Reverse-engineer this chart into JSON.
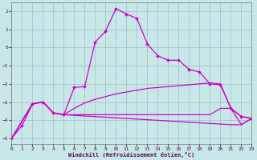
{
  "xlabel": "Windchill (Refroidissement éolien,°C)",
  "xlim": [
    0,
    23
  ],
  "ylim": [
    -5.3,
    2.5
  ],
  "xtick_labels": [
    "0",
    "1",
    "2",
    "3",
    "4",
    "5",
    "6",
    "7",
    "8",
    "9",
    "10",
    "11",
    "12",
    "13",
    "14",
    "15",
    "16",
    "17",
    "18",
    "19",
    "20",
    "21",
    "22",
    "23"
  ],
  "xticks": [
    0,
    1,
    2,
    3,
    4,
    5,
    6,
    7,
    8,
    9,
    10,
    11,
    12,
    13,
    14,
    15,
    16,
    17,
    18,
    19,
    20,
    21,
    22,
    23
  ],
  "yticks": [
    -5,
    -4,
    -3,
    -2,
    -1,
    0,
    1,
    2
  ],
  "bg_color": "#c8e8e8",
  "grid_color": "#9ab0c0",
  "line_color": "#cc00cc",
  "curve1_x": [
    0,
    1,
    2,
    3,
    4,
    5,
    6,
    7,
    8,
    9,
    10,
    11,
    12,
    13,
    14,
    15,
    16,
    17,
    18,
    19,
    20,
    21,
    22,
    23
  ],
  "curve1_y": [
    -5.0,
    -4.3,
    -3.1,
    -3.0,
    -3.6,
    -3.7,
    -2.2,
    -2.15,
    0.3,
    0.9,
    2.15,
    1.85,
    1.6,
    0.2,
    -0.45,
    -0.7,
    -0.7,
    -1.2,
    -1.35,
    -2.0,
    -2.05,
    -3.35,
    -3.8,
    -3.9
  ],
  "curve2_x": [
    0,
    2,
    3,
    4,
    5,
    6,
    7,
    8,
    9,
    10,
    11,
    12,
    13,
    14,
    15,
    16,
    17,
    18,
    19,
    20,
    21,
    22,
    23
  ],
  "curve2_y": [
    -5.0,
    -3.1,
    -3.0,
    -3.6,
    -3.7,
    -3.35,
    -3.05,
    -2.85,
    -2.7,
    -2.55,
    -2.45,
    -2.35,
    -2.25,
    -2.2,
    -2.15,
    -2.1,
    -2.05,
    -2.0,
    -1.95,
    -2.0,
    -3.35,
    -3.8,
    -3.9
  ],
  "curve3_x": [
    0,
    2,
    3,
    4,
    5,
    6,
    7,
    8,
    9,
    10,
    11,
    12,
    13,
    14,
    15,
    16,
    17,
    18,
    19,
    20,
    21,
    22,
    23
  ],
  "curve3_y": [
    -5.0,
    -3.1,
    -3.0,
    -3.6,
    -3.7,
    -3.7,
    -3.7,
    -3.7,
    -3.7,
    -3.7,
    -3.7,
    -3.7,
    -3.7,
    -3.7,
    -3.7,
    -3.7,
    -3.7,
    -3.7,
    -3.7,
    -3.35,
    -3.35,
    -4.25,
    -3.9
  ],
  "curve4_x": [
    0,
    2,
    3,
    4,
    5,
    21,
    22,
    23
  ],
  "curve4_y": [
    -5.0,
    -3.1,
    -3.0,
    -3.6,
    -3.7,
    -4.25,
    -4.25,
    -3.9
  ],
  "lw": 0.9,
  "ms": 2.0
}
